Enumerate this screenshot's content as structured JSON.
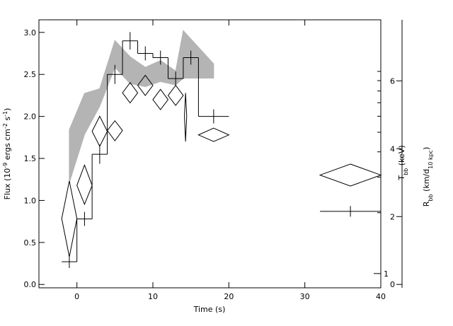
{
  "chart_data": {
    "type": "composite",
    "x_label": "Time (s)",
    "xlim": [
      -5,
      40
    ],
    "xticks": [
      0,
      10,
      20,
      30,
      40
    ],
    "ylim": [
      -0.04,
      3.15
    ],
    "yticks": [
      {
        "value": 0,
        "label": "0.0"
      },
      {
        "value": 0.5,
        "label": "0.5"
      },
      {
        "value": 1,
        "label": "1.0"
      },
      {
        "value": 1.5,
        "label": "1.5"
      },
      {
        "value": 2,
        "label": "2.0"
      },
      {
        "value": 2.5,
        "label": "2.5"
      },
      {
        "value": 3,
        "label": "3.0"
      }
    ],
    "y_label": [
      {
        "text": "Flux (10"
      },
      {
        "text": "-9",
        "script": "sup"
      },
      {
        "text": " ergs cm"
      },
      {
        "text": "-2",
        "script": "sup"
      },
      {
        "text": " s"
      },
      {
        "text": "-1",
        "script": "sup"
      },
      {
        "text": ")"
      }
    ],
    "y2lim": [
      -0.1,
      7.8
    ],
    "y2ticks": [
      0,
      2,
      4,
      6
    ],
    "y2_label": [
      {
        "text": "R"
      },
      {
        "text": "bb",
        "script": "sub"
      },
      {
        "text": " (km/d"
      },
      {
        "text": "10 kpc",
        "script": "sub"
      },
      {
        "text": ")"
      }
    ],
    "y3lim": [
      0.85,
      18
    ],
    "y3_scale": "log",
    "y3ticks": [
      1
    ],
    "y3_minor_ticks": [
      2,
      3,
      4,
      5,
      6,
      7,
      8,
      9,
      10
    ],
    "y3_label": [
      {
        "text": "T"
      },
      {
        "text": "bb",
        "script": "sub"
      },
      {
        "text": " (keV)"
      }
    ],
    "layers": [
      {
        "type": "band",
        "axis": "y2",
        "color": "#b4b4b4",
        "x": [
          -1,
          1,
          3,
          5,
          7,
          9,
          11,
          13,
          14,
          18
        ],
        "upper": [
          4.56,
          5.63,
          5.77,
          7.19,
          6.71,
          6.4,
          6.6,
          6.29,
          7.48,
          6.5
        ],
        "lower": [
          3.0,
          4.42,
          5.25,
          6.4,
          5.92,
          5.83,
          5.98,
          5.88,
          6.08,
          6.08
        ]
      },
      {
        "type": "step",
        "axis": "y",
        "color": "#000000",
        "x_left": [
          -2,
          0,
          2,
          4,
          6,
          8,
          10,
          12,
          14,
          16,
          32
        ],
        "x_right": [
          0,
          2,
          4,
          6,
          8,
          10,
          12,
          14,
          16,
          20,
          40
        ],
        "values": [
          0.27,
          0.78,
          1.55,
          2.5,
          2.9,
          2.75,
          2.7,
          2.45,
          2.7,
          2.0,
          0.87
        ],
        "errors": [
          0.04,
          0.05,
          0.08,
          0.08,
          0.07,
          0.05,
          0.05,
          0.05,
          0.05,
          0.05,
          0.03
        ]
      },
      {
        "type": "diamond",
        "axis": "y3",
        "color": "#000000",
        "x": [
          -1,
          1,
          3,
          5,
          7,
          9,
          11,
          13,
          14.3,
          18,
          36
        ],
        "xerr": [
          1,
          1,
          1,
          1,
          1,
          1,
          1,
          1,
          0.15,
          2,
          4
        ],
        "values": [
          1.87,
          2.73,
          5.05,
          5.1,
          7.83,
          8.53,
          7.25,
          7.6,
          6.0,
          4.85,
          3.07
        ],
        "low": [
          1.21,
          2.2,
          4.26,
          4.54,
          6.98,
          7.6,
          6.47,
          6.79,
          4.5,
          4.5,
          2.71
        ],
        "high": [
          2.87,
          3.44,
          6.0,
          5.7,
          8.8,
          9.57,
          8.15,
          8.53,
          7.83,
          5.24,
          3.48
        ]
      }
    ]
  }
}
